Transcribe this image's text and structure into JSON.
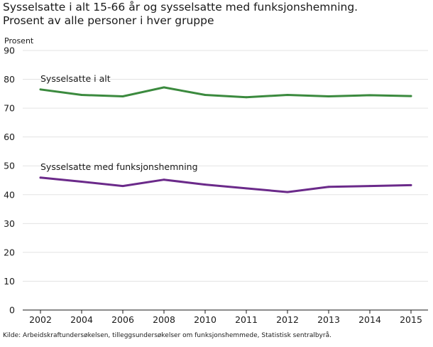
{
  "title_line1": "Sysselsatte i alt 15-66 år og sysselsatte med funksjonshemning.",
  "title_line2": "Prosent av alle personer i hver gruppe",
  "source": "Kilde: Arbeidskraftundersøkelsen, tilleggsundersøkelser om funksjonshemmede, Statistisk sentralbyrå.",
  "chart_data": {
    "type": "line",
    "title": "Sysselsatte i alt 15-66 år og sysselsatte med funksjonshemning. Prosent av alle personer i hver gruppe",
    "ylabel": "Prosent",
    "xlabel": "",
    "ylim": [
      0,
      90
    ],
    "yticks": [
      0,
      10,
      20,
      30,
      40,
      50,
      60,
      70,
      80,
      90
    ],
    "categories": [
      "2002",
      "2004",
      "2006",
      "2008",
      "2010",
      "2011",
      "2012",
      "2013",
      "2014",
      "2015"
    ],
    "grid": true,
    "series": [
      {
        "name": "Sysselsatte i alt",
        "color": "#3b8a3e",
        "values": [
          76.5,
          74.6,
          74.1,
          77.2,
          74.6,
          73.8,
          74.6,
          74.1,
          74.5,
          74.2
        ]
      },
      {
        "name": "Sysselsatte med funksjonshemning",
        "color": "#6b2a8a",
        "values": [
          45.9,
          44.5,
          43.0,
          45.2,
          43.5,
          42.2,
          40.9,
          42.7,
          43.0,
          43.3
        ]
      }
    ]
  }
}
